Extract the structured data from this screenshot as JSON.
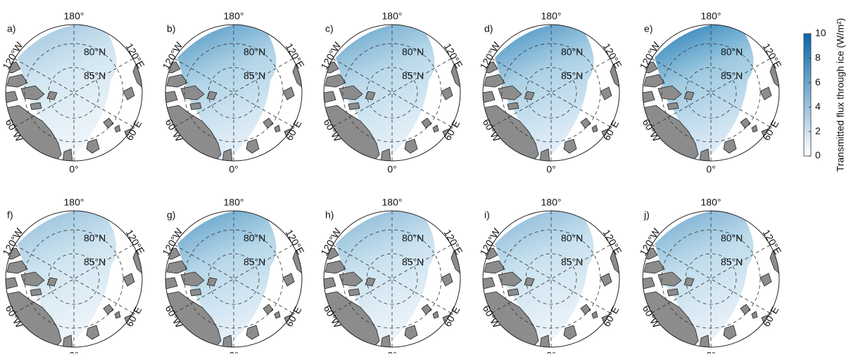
{
  "panels": [
    {
      "label": "a)"
    },
    {
      "label": "b)"
    },
    {
      "label": "c)"
    },
    {
      "label": "d)"
    },
    {
      "label": "e)"
    },
    {
      "label": "f)"
    },
    {
      "label": "g)"
    },
    {
      "label": "h)"
    },
    {
      "label": "i)"
    },
    {
      "label": "j)"
    }
  ],
  "lon_labels": [
    "180°",
    "120°E",
    "60°E",
    "0°",
    "60°W",
    "120°W"
  ],
  "lat_labels": [
    "80°N",
    "85°N"
  ],
  "colorbar": {
    "label": "Transmitted flux through ice (W/m²)",
    "lim": [
      0,
      10
    ],
    "ticks": [
      0,
      2,
      4,
      6,
      8,
      10
    ],
    "colors": [
      "#ffffff",
      "#0868ac"
    ]
  }
}
